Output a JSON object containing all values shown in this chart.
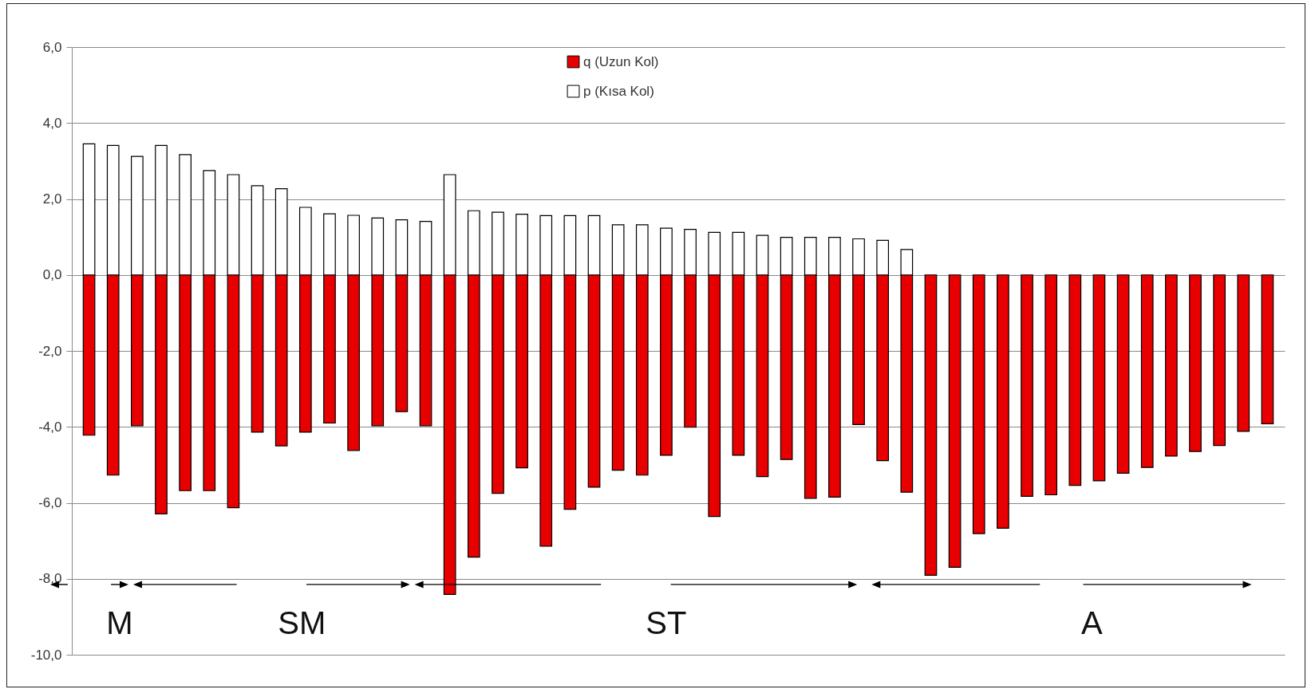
{
  "chart_data": {
    "type": "bar",
    "stacked": true,
    "categories": [
      null,
      null,
      null,
      null,
      null,
      null,
      null,
      null,
      null,
      null,
      null,
      null,
      null,
      null,
      null,
      null,
      null,
      null,
      null,
      null,
      null,
      null,
      null,
      null,
      null,
      null,
      null,
      null,
      null,
      null,
      null,
      null,
      null,
      null,
      null,
      null,
      null,
      null,
      null,
      null,
      null,
      null,
      null,
      null,
      null,
      null,
      null,
      null,
      null,
      null
    ],
    "series": [
      {
        "name": "q (Uzun Kol)",
        "color": "#e80000",
        "values": [
          -4.22,
          -5.27,
          -3.97,
          -6.29,
          -5.68,
          -5.68,
          -6.13,
          -4.14,
          -4.5,
          -4.14,
          -3.9,
          -4.62,
          -3.97,
          -3.6,
          -3.97,
          -8.41,
          -7.43,
          -5.75,
          -5.08,
          -7.14,
          -6.17,
          -5.59,
          -5.14,
          -5.27,
          -4.75,
          -4.01,
          -6.36,
          -4.75,
          -5.31,
          -4.86,
          -5.88,
          -5.85,
          -3.94,
          -4.89,
          -5.72,
          -7.91,
          -7.7,
          -6.81,
          -6.67,
          -5.83,
          -5.79,
          -5.54,
          -5.42,
          -5.22,
          -5.07,
          -4.77,
          -4.65,
          -4.49,
          -4.12,
          -3.92
        ]
      },
      {
        "name": "p (Kısa Kol)",
        "color": "#ffffff",
        "values": [
          3.45,
          3.41,
          3.12,
          3.41,
          3.17,
          2.75,
          2.64,
          2.35,
          2.27,
          1.78,
          1.61,
          1.57,
          1.5,
          1.45,
          1.41,
          2.64,
          1.69,
          1.65,
          1.6,
          1.56,
          1.56,
          1.56,
          1.32,
          1.32,
          1.23,
          1.2,
          1.12,
          1.12,
          1.04,
          0.99,
          0.99,
          0.99,
          0.95,
          0.91,
          0.67,
          null,
          null,
          null,
          null,
          null,
          null,
          null,
          null,
          null,
          null,
          null,
          null,
          null,
          null,
          null
        ]
      }
    ],
    "ylim": [
      -10,
      6
    ],
    "yticks": [
      {
        "value": -10,
        "label": "-10,0"
      },
      {
        "value": -8,
        "label": "-8,0"
      },
      {
        "value": -6,
        "label": "-6,0"
      },
      {
        "value": -4,
        "label": "-4,0"
      },
      {
        "value": -2,
        "label": "-2,0"
      },
      {
        "value": 0,
        "label": "0,0"
      },
      {
        "value": 2,
        "label": "2,0"
      },
      {
        "value": 4,
        "label": "4,0"
      },
      {
        "value": 6,
        "label": "6,0"
      }
    ],
    "grid": "y",
    "legend": "top",
    "tick_labels": "y",
    "annotations": [
      "M",
      "SM",
      "ST",
      "A"
    ]
  }
}
